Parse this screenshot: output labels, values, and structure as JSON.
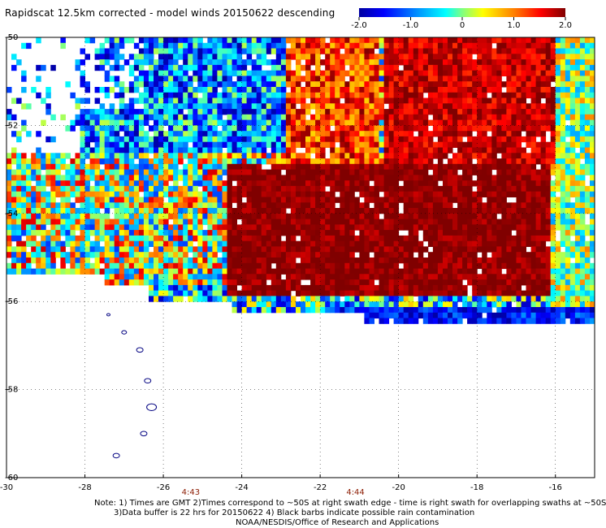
{
  "title": "Rapidscat 12.5km corrected - model winds 20150622 descending",
  "colorbar": {
    "tick_labels": [
      "-2.0",
      "-1.0",
      "0",
      "1.0",
      "2.0"
    ],
    "min": -2.0,
    "max": 2.0
  },
  "chart_data": {
    "type": "heatmap",
    "title": "Rapidscat 12.5km corrected - model winds 20150622 descending",
    "x_ticks": [
      -30,
      -28,
      -26,
      -24,
      -22,
      -20,
      -18,
      -16
    ],
    "x_tick_labels": [
      "-30",
      "-28",
      "-26",
      "-24",
      "-22",
      "-20",
      "-18",
      "-16"
    ],
    "y_ticks": [
      -50,
      -52,
      -54,
      -56,
      -58,
      -60
    ],
    "y_tick_labels": [
      "-50",
      "-52",
      "-54",
      "-56",
      "-58",
      "-60"
    ],
    "xlim": [
      -30,
      -15
    ],
    "ylim": [
      -60,
      -50
    ],
    "grid": true,
    "value_range": [
      -2.0,
      2.0
    ],
    "description_regions": [
      {
        "x": [
          -22.5,
          -16
        ],
        "y": [
          -55.5,
          -50
        ],
        "value": 2.0
      },
      {
        "x": [
          -30,
          -24
        ],
        "y": [
          -55.5,
          -53
        ],
        "value": 0.0
      },
      {
        "x": [
          -29,
          -22
        ],
        "y": [
          -52.5,
          -50
        ],
        "value": -1.0
      }
    ],
    "time_labels": [
      {
        "x": -25.3,
        "text": "4:43"
      },
      {
        "x": -21.1,
        "text": "4:44"
      }
    ]
  },
  "notes": [
    "Note: 1) Times are GMT 2)Times correspond to ~50S at right swath edge - time is right swath for overlapping swaths at ~50S",
    "3)Data buffer is 22 hrs for 20150622 4) Black barbs indicate possible rain contamination",
    "NOAA/NESDIS/Office of Research and Applications"
  ]
}
